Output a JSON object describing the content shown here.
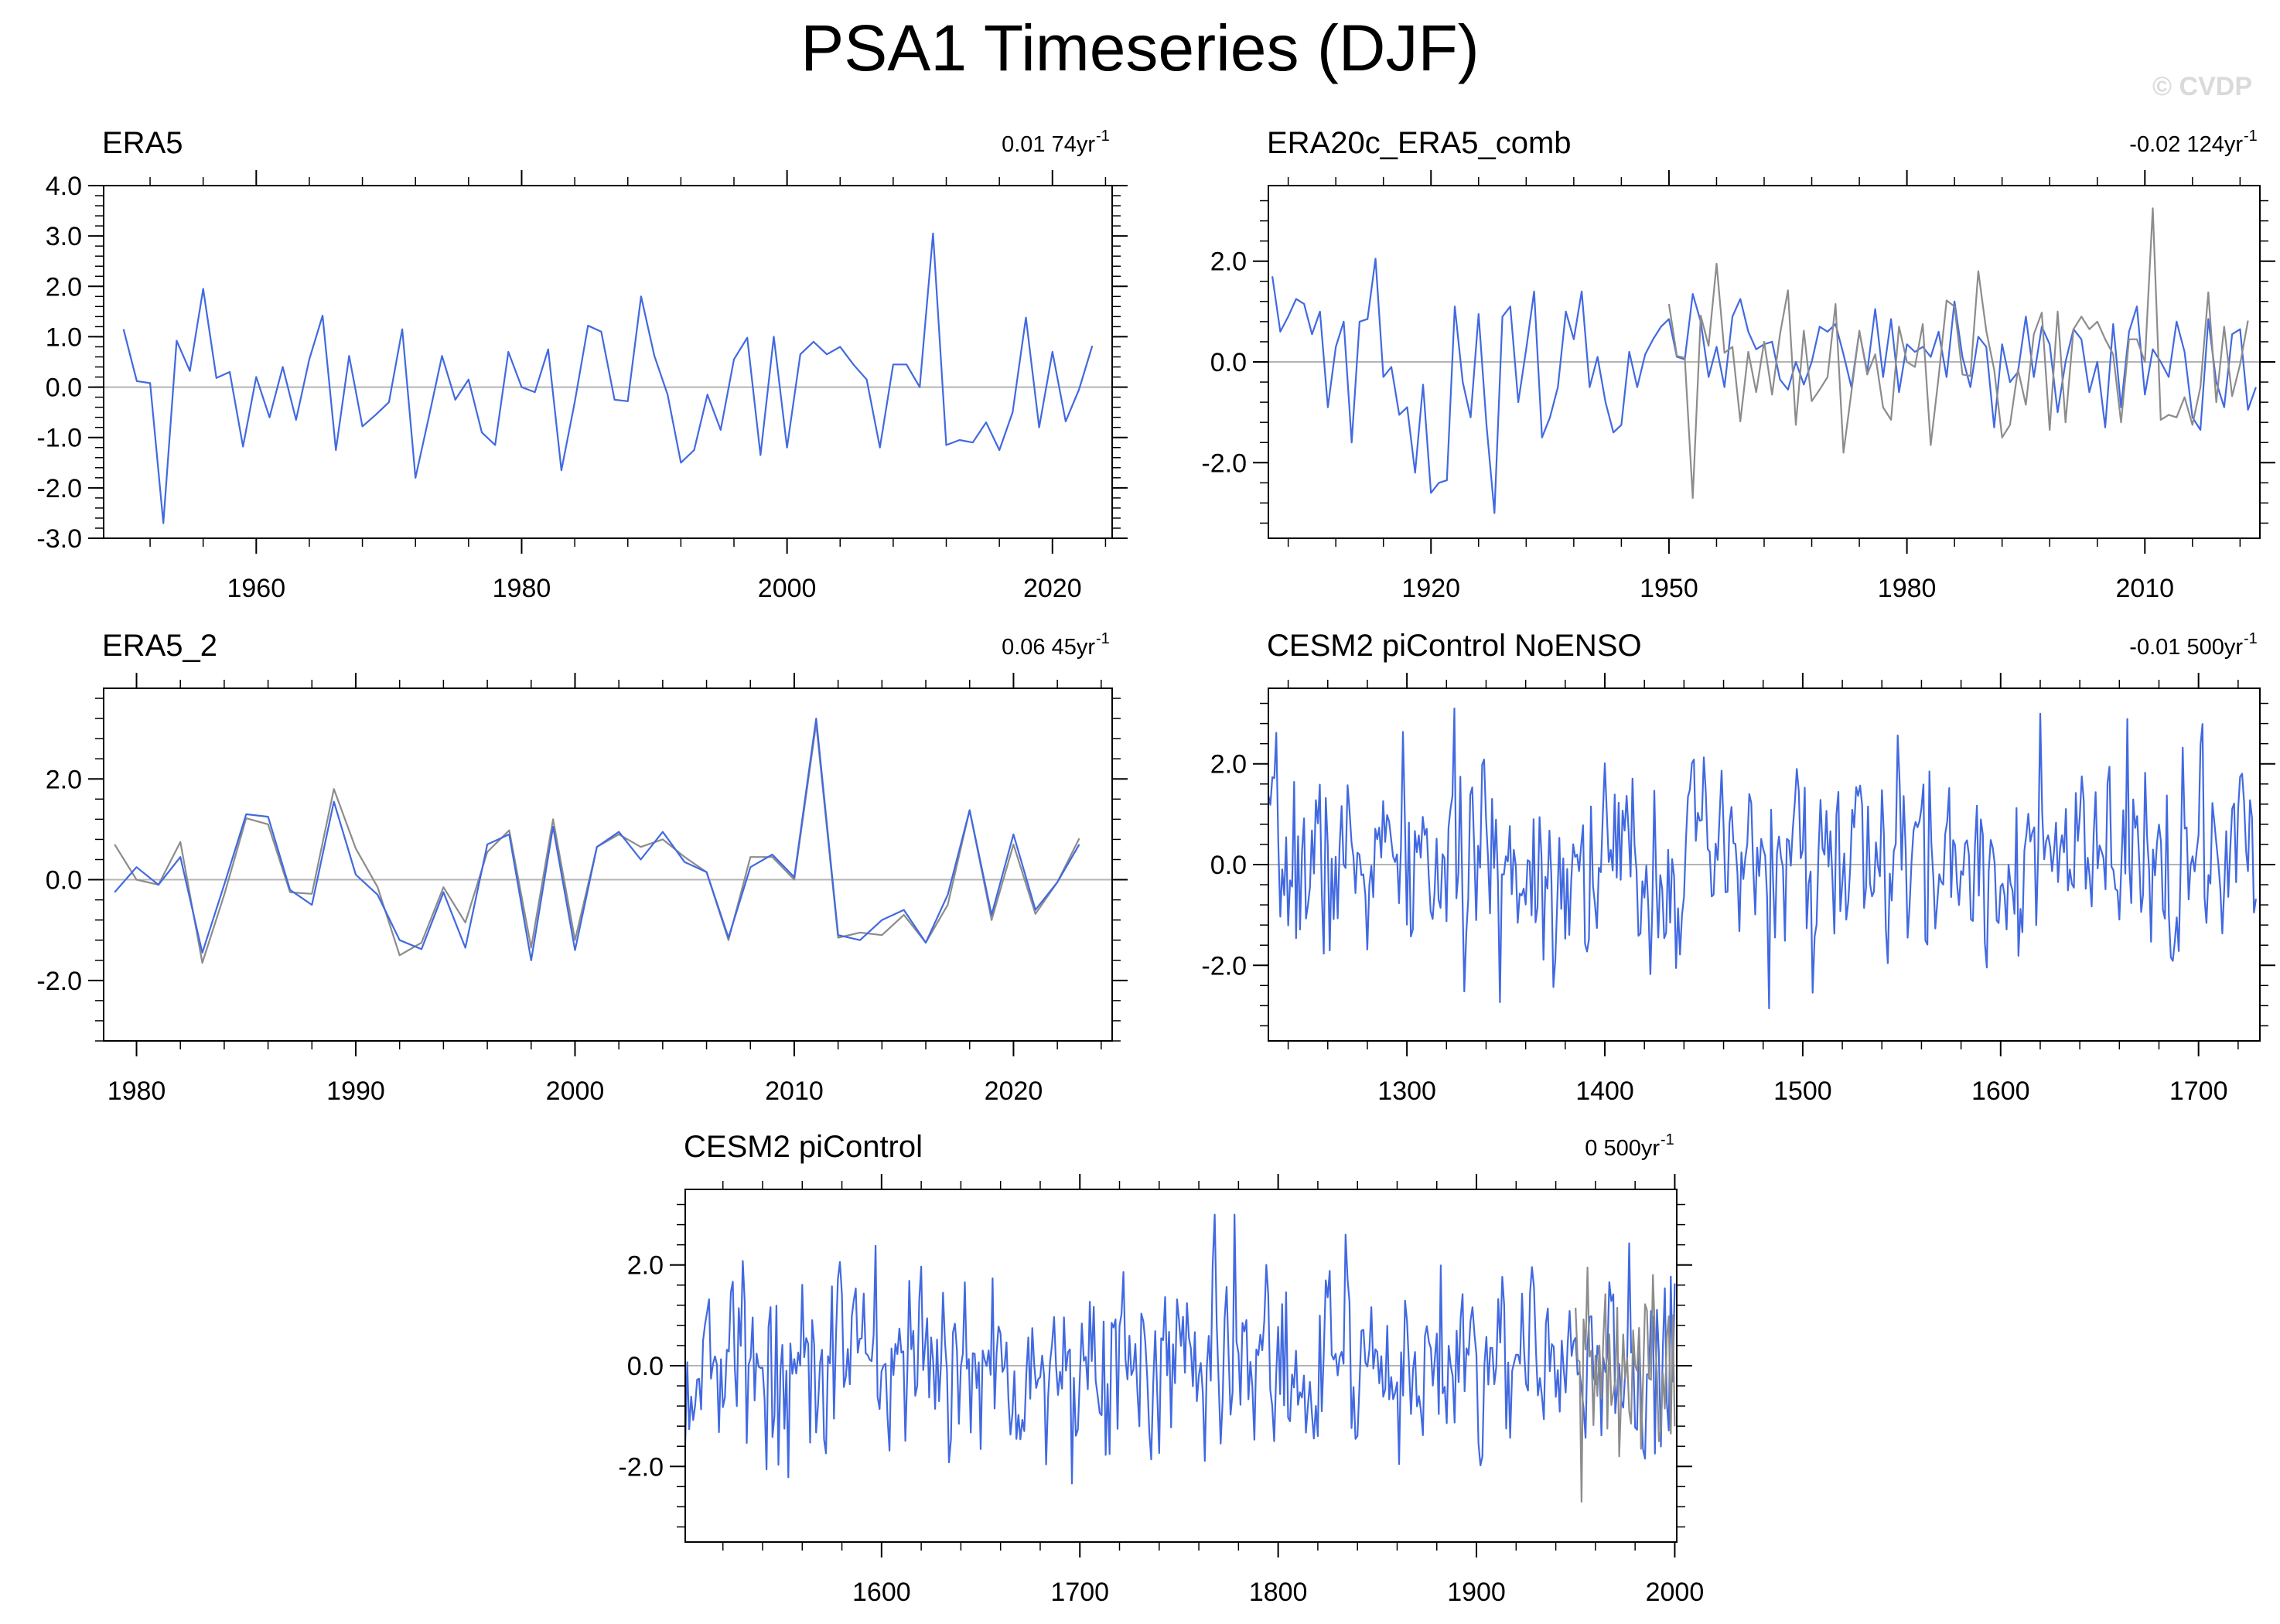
{
  "title": "PSA1 Timeseries (DJF)",
  "watermark": "© CVDP",
  "colors": {
    "observed": "#4169e1",
    "comparison": "#8c8c8c",
    "zero_line": "#b4b4b4",
    "axis": "#000000"
  },
  "chart_data": [
    {
      "type": "line",
      "title": "ERA5",
      "trend": "0.01 74yr",
      "trend_sup": "-1",
      "xlim": [
        1948.5,
        2024.5
      ],
      "ylim": [
        -3.0,
        4.0
      ],
      "yticks": [
        -3.0,
        -2.0,
        -1.0,
        0.0,
        1.0,
        2.0,
        3.0,
        4.0
      ],
      "ytick_labels": [
        "-3.0",
        "-2.0",
        "-1.0",
        "0.0",
        "1.0",
        "2.0",
        "3.0",
        "4.0"
      ],
      "xticks": [
        1960,
        1980,
        2000,
        2020
      ],
      "xtick_labels": [
        "1960",
        "1980",
        "2000",
        "2020"
      ],
      "x_start": 1950,
      "series": [
        {
          "name": "ERA5",
          "color": "#4169e1",
          "values": [
            1.15,
            0.12,
            0.08,
            -2.7,
            0.92,
            0.32,
            1.95,
            0.18,
            0.3,
            -1.18,
            0.2,
            -0.6,
            0.4,
            -0.65,
            0.55,
            1.42,
            -1.25,
            0.62,
            -0.78,
            -0.55,
            -0.3,
            1.15,
            -1.8,
            -0.6,
            0.62,
            -0.25,
            0.15,
            -0.9,
            -1.15,
            0.7,
            0.0,
            -0.1,
            0.75,
            -1.65,
            -0.3,
            1.22,
            1.1,
            -0.25,
            -0.28,
            1.8,
            0.62,
            -0.15,
            -1.5,
            -1.25,
            -0.15,
            -0.85,
            0.55,
            0.98,
            -1.35,
            1.0,
            -1.2,
            0.65,
            0.9,
            0.65,
            0.8,
            0.45,
            0.15,
            -1.2,
            0.45,
            0.45,
            0.0,
            3.05,
            -1.15,
            -1.05,
            -1.1,
            -0.7,
            -1.25,
            -0.5,
            1.38,
            -0.8,
            0.7,
            -0.68,
            -0.05,
            0.82
          ]
        }
      ]
    },
    {
      "type": "line",
      "title": "ERA20c_ERA5_comb",
      "trend": "-0.02 124yr",
      "trend_sup": "-1",
      "xlim": [
        1899.5,
        2024.5
      ],
      "ylim": [
        -3.5,
        3.5
      ],
      "yticks": [
        -2.0,
        0.0,
        2.0
      ],
      "ytick_labels": [
        "-2.0",
        "0.0",
        "2.0"
      ],
      "xticks": [
        1920,
        1950,
        1980,
        2010
      ],
      "xtick_labels": [
        "1920",
        "1950",
        "1980",
        "2010"
      ],
      "x_start": 1900,
      "series": [
        {
          "name": "ERA20c_ERA5_comb",
          "color": "#4169e1",
          "values": [
            1.7,
            0.6,
            0.9,
            1.25,
            1.15,
            0.55,
            1.0,
            -0.9,
            0.3,
            0.8,
            -1.6,
            0.8,
            0.85,
            2.05,
            -0.3,
            -0.1,
            -1.05,
            -0.9,
            -2.2,
            -0.45,
            -2.6,
            -2.4,
            -2.35,
            1.1,
            -0.4,
            -1.1,
            0.95,
            -1.25,
            -3.0,
            0.9,
            1.1,
            -0.8,
            0.25,
            1.4,
            -1.5,
            -1.1,
            -0.5,
            1.0,
            0.45,
            1.4,
            -0.5,
            0.1,
            -0.8,
            -1.4,
            -1.25,
            0.2,
            -0.5,
            0.15,
            0.45,
            0.7,
            0.85,
            0.1,
            0.05,
            1.35,
            0.8,
            -0.3,
            0.3,
            -0.5,
            0.9,
            1.25,
            0.6,
            0.25,
            0.35,
            0.4,
            -0.35,
            -0.55,
            0.0,
            -0.45,
            0.0,
            0.7,
            0.6,
            0.75,
            0.15,
            -0.5,
            0.6,
            -0.2,
            1.05,
            -0.3,
            0.85,
            -0.6,
            0.35,
            0.2,
            0.3,
            0.1,
            0.6,
            -0.3,
            1.2,
            0.1,
            -0.5,
            0.5,
            0.3,
            -1.3,
            0.35,
            -0.4,
            -0.2,
            0.9,
            -0.3,
            0.7,
            0.35,
            -1.0,
            0.0,
            0.65,
            0.45,
            -0.6,
            0.0,
            -1.3,
            0.75,
            -0.9,
            0.6,
            1.1,
            -0.65,
            0.25,
            0.0,
            -0.3,
            0.8,
            0.2,
            -1.1,
            -1.35,
            0.85,
            -0.4,
            -0.9,
            0.55,
            0.65,
            -0.95,
            -0.5
          ]
        },
        {
          "name": "comparison",
          "color": "#8c8c8c",
          "x_start": 1950,
          "values": [
            1.15,
            0.12,
            0.08,
            -2.7,
            0.92,
            0.32,
            1.95,
            0.18,
            0.3,
            -1.18,
            0.2,
            -0.6,
            0.4,
            -0.65,
            0.55,
            1.42,
            -1.25,
            0.62,
            -0.78,
            -0.55,
            -0.3,
            1.15,
            -1.8,
            -0.6,
            0.62,
            -0.25,
            0.15,
            -0.9,
            -1.15,
            0.7,
            0.0,
            -0.1,
            0.75,
            -1.65,
            -0.3,
            1.22,
            1.1,
            -0.25,
            -0.28,
            1.8,
            0.62,
            -0.15,
            -1.5,
            -1.25,
            -0.15,
            -0.85,
            0.55,
            0.98,
            -1.35,
            1.0,
            -1.2,
            0.65,
            0.9,
            0.65,
            0.8,
            0.45,
            0.15,
            -1.2,
            0.45,
            0.45,
            0.0,
            3.05,
            -1.15,
            -1.05,
            -1.1,
            -0.7,
            -1.25,
            -0.5,
            1.38,
            -0.8,
            0.7,
            -0.68,
            -0.05,
            0.82
          ]
        }
      ]
    },
    {
      "type": "line",
      "title": "ERA5_2",
      "trend": "0.06 45yr",
      "trend_sup": "-1",
      "xlim": [
        1978.5,
        2024.5
      ],
      "ylim": [
        -3.2,
        3.8
      ],
      "yticks": [
        -2.0,
        0.0,
        2.0
      ],
      "ytick_labels": [
        "-2.0",
        "0.0",
        "2.0"
      ],
      "xticks": [
        1980,
        1990,
        2000,
        2010,
        2020
      ],
      "xtick_labels": [
        "1980",
        "1990",
        "2000",
        "2010",
        "2020"
      ],
      "x_start": 1979,
      "series": [
        {
          "name": "comparison",
          "color": "#8c8c8c",
          "values": [
            0.7,
            0.0,
            -0.1,
            0.75,
            -1.65,
            -0.3,
            1.22,
            1.1,
            -0.25,
            -0.28,
            1.8,
            0.62,
            -0.15,
            -1.5,
            -1.25,
            -0.15,
            -0.85,
            0.55,
            0.98,
            -1.35,
            1.2,
            -1.2,
            0.65,
            0.9,
            0.65,
            0.8,
            0.45,
            0.15,
            -1.2,
            0.45,
            0.45,
            0.0,
            3.1,
            -1.15,
            -1.05,
            -1.1,
            -0.7,
            -1.25,
            -0.5,
            1.38,
            -0.8,
            0.7,
            -0.68,
            -0.05,
            0.82
          ]
        },
        {
          "name": "ERA5_2",
          "color": "#4169e1",
          "values": [
            -0.25,
            0.25,
            -0.1,
            0.45,
            -1.45,
            -0.1,
            1.3,
            1.25,
            -0.2,
            -0.5,
            1.55,
            0.1,
            -0.3,
            -1.2,
            -1.38,
            -0.25,
            -1.35,
            0.7,
            0.9,
            -1.6,
            1.05,
            -1.4,
            0.65,
            0.95,
            0.4,
            0.95,
            0.35,
            0.15,
            -1.15,
            0.25,
            0.5,
            0.05,
            3.2,
            -1.1,
            -1.2,
            -0.8,
            -0.6,
            -1.25,
            -0.3,
            1.38,
            -0.7,
            0.9,
            -0.6,
            -0.05,
            0.7
          ]
        }
      ]
    },
    {
      "type": "line",
      "title": "CESM2 piControl NoENSO",
      "trend": "-0.01 500yr",
      "trend_sup": "-1",
      "xlim": [
        1230,
        1731
      ],
      "ylim": [
        -3.5,
        3.5
      ],
      "yticks": [
        -2.0,
        0.0,
        2.0
      ],
      "ytick_labels": [
        "-2.0",
        "0.0",
        "2.0"
      ],
      "xticks": [
        1300,
        1400,
        1500,
        1600,
        1700
      ],
      "xtick_labels": [
        "1300",
        "1400",
        "1500",
        "1600",
        "1700"
      ],
      "x_start": 1230,
      "noise": {
        "n": 500,
        "seed": 7,
        "amp": 0.95,
        "clip": [
          -2.9,
          3.1
        ]
      },
      "series": [
        {
          "name": "CESM2 piControl NoENSO",
          "color": "#4169e1",
          "generated": true
        }
      ]
    },
    {
      "type": "line",
      "title": "CESM2 piControl",
      "trend": "0 500yr",
      "trend_sup": "-1",
      "xlim": [
        1501,
        2001
      ],
      "ylim": [
        -3.5,
        3.5
      ],
      "yticks": [
        -2.0,
        0.0,
        2.0
      ],
      "ytick_labels": [
        "-2.0",
        "0.0",
        "2.0"
      ],
      "xticks": [
        1600,
        1700,
        1800,
        1900,
        2000
      ],
      "xtick_labels": [
        "1600",
        "1700",
        "1800",
        "1900",
        "2000"
      ],
      "x_start": 1501,
      "noise": {
        "n": 500,
        "seed": 13,
        "amp": 0.95,
        "clip": [
          -3.0,
          3.0
        ]
      },
      "series": [
        {
          "name": "CESM2 piControl",
          "color": "#4169e1",
          "generated": true
        },
        {
          "name": "comparison",
          "color": "#8c8c8c",
          "x_start": 1950,
          "values": [
            1.15,
            0.12,
            0.08,
            -2.7,
            0.92,
            0.32,
            1.95,
            0.18,
            0.3,
            -1.18,
            0.2,
            -0.6,
            0.4,
            -0.65,
            0.55,
            1.42,
            -1.25,
            0.62,
            -0.78,
            -0.55,
            -0.3,
            1.15,
            -1.8,
            -0.6,
            0.62,
            -0.25,
            0.15,
            -0.9,
            -1.15,
            0.7,
            0.0,
            -0.1,
            0.75,
            -1.65,
            -0.3,
            1.22,
            1.1,
            -0.25,
            -0.28,
            1.8,
            0.62,
            -0.15,
            -1.5,
            -1.25,
            -0.15,
            -0.85,
            0.55,
            0.98,
            -1.35,
            1.0,
            -1.2
          ]
        }
      ]
    }
  ]
}
